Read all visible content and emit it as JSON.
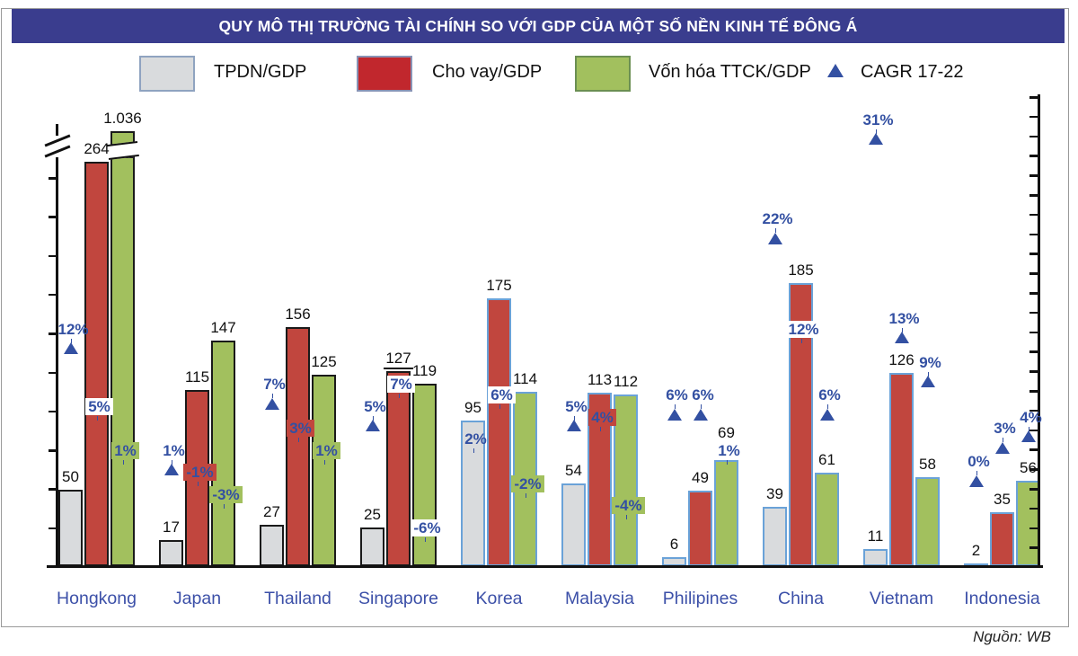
{
  "title": "QUY MÔ THỊ TRƯỜNG TÀI CHÍNH SO VỚI GDP CỦA MỘT SỐ NỀN KINH TẾ ĐÔNG Á",
  "source": "Nguồn: WB",
  "legend": [
    {
      "label": "TPDN/GDP",
      "swatch": "gray"
    },
    {
      "label": "Cho vay/GDP",
      "swatch": "red"
    },
    {
      "label": "Vốn hóa TTCK/GDP",
      "swatch": "green"
    },
    {
      "label": "CAGR 17-22",
      "swatch": "triangle"
    }
  ],
  "colors": {
    "banner_bg": "#3a3d8e",
    "bar_gray": "#d9dbdd",
    "bar_red": "#c1463e",
    "bar_green": "#a2c05e",
    "legend_red": "#c1272d",
    "border_black": "#1a1a1a",
    "border_blue": "#6aa2d8",
    "cagr_blue": "#3350a2",
    "country_blue": "#3c50a8"
  },
  "chart_data": {
    "type": "bar",
    "title": "QUY MÔ THỊ TRƯỜNG TÀI CHÍNH SO VỚI GDP CỦA MỘT SỐ NỀN KINH TẾ ĐÔNG Á",
    "series_names": [
      "TPDN/GDP",
      "Cho vay/GDP",
      "Vốn hóa TTCK/GDP",
      "CAGR 17-22"
    ],
    "categories": [
      "Hongkong",
      "Japan",
      "Thailand",
      "Singapore",
      "Korea",
      "Malaysia",
      "Philipines",
      "China",
      "Vietnam",
      "Indonesia"
    ],
    "axis_note": "left axis has a scale break above 264; Hongkong stock-cap bar (1.036) is truncated",
    "countries": [
      {
        "name": "Hongkong",
        "border": "black",
        "bars": [
          {
            "value": 50,
            "label": "50"
          },
          {
            "value": 264,
            "label": "264"
          },
          {
            "value": 1036,
            "label": "1.036",
            "axis_break": true
          }
        ],
        "cagr": [
          {
            "value": 12,
            "label": "12%",
            "bg": "none"
          },
          {
            "value": 5,
            "label": "5%",
            "bg": "white"
          },
          {
            "value": 1,
            "label": "1%",
            "bg": "green"
          }
        ]
      },
      {
        "name": "Japan",
        "border": "black",
        "bars": [
          {
            "value": 17,
            "label": "17"
          },
          {
            "value": 115,
            "label": "115"
          },
          {
            "value": 147,
            "label": "147"
          }
        ],
        "cagr": [
          {
            "value": 1,
            "label": "1%",
            "bg": "none"
          },
          {
            "value": -1,
            "label": "-1%",
            "bg": "red"
          },
          {
            "value": -3,
            "label": "-3%",
            "bg": "green"
          }
        ]
      },
      {
        "name": "Thailand",
        "border": "black",
        "bars": [
          {
            "value": 27,
            "label": "27"
          },
          {
            "value": 156,
            "label": "156"
          },
          {
            "value": 125,
            "label": "125"
          }
        ],
        "cagr": [
          {
            "value": 7,
            "label": "7%",
            "bg": "none"
          },
          {
            "value": 3,
            "label": "3%",
            "bg": "red"
          },
          {
            "value": 1,
            "label": "1%",
            "bg": "green"
          }
        ]
      },
      {
        "name": "Singapore",
        "border": "black",
        "bars": [
          {
            "value": 25,
            "label": "25"
          },
          {
            "value": 127,
            "label": "127",
            "underline": true
          },
          {
            "value": 119,
            "label": "119"
          }
        ],
        "cagr": [
          {
            "value": 5,
            "label": "5%",
            "bg": "none"
          },
          {
            "value": 7,
            "label": "7%",
            "bg": "white"
          },
          {
            "value": -6,
            "label": "-6%",
            "bg": "white"
          }
        ]
      },
      {
        "name": "Korea",
        "border": "blue",
        "bars": [
          {
            "value": 95,
            "label": "95"
          },
          {
            "value": 175,
            "label": "175"
          },
          {
            "value": 114,
            "label": "114"
          }
        ],
        "cagr": [
          {
            "value": 2,
            "label": "2%",
            "bg": "none"
          },
          {
            "value": 6,
            "label": "6%",
            "bg": "white"
          },
          {
            "value": -2,
            "label": "-2%",
            "bg": "green"
          }
        ]
      },
      {
        "name": "Malaysia",
        "border": "blue",
        "bars": [
          {
            "value": 54,
            "label": "54"
          },
          {
            "value": 113,
            "label": "113"
          },
          {
            "value": 112,
            "label": "112"
          }
        ],
        "cagr": [
          {
            "value": 5,
            "label": "5%",
            "bg": "none"
          },
          {
            "value": 4,
            "label": "4%",
            "bg": "red"
          },
          {
            "value": -4,
            "label": "-4%",
            "bg": "green"
          }
        ]
      },
      {
        "name": "Philipines",
        "border": "blue",
        "bars": [
          {
            "value": 6,
            "label": "6"
          },
          {
            "value": 49,
            "label": "49"
          },
          {
            "value": 69,
            "label": "69",
            "label_dy": -16
          }
        ],
        "cagr": [
          {
            "value": 6,
            "label": "6%",
            "bg": "none"
          },
          {
            "value": 6,
            "label": "6%",
            "bg": "none"
          },
          {
            "value": 1,
            "label": "1%",
            "bg": "none"
          }
        ]
      },
      {
        "name": "China",
        "border": "blue",
        "bars": [
          {
            "value": 39,
            "label": "39"
          },
          {
            "value": 185,
            "label": "185"
          },
          {
            "value": 61,
            "label": "61"
          }
        ],
        "cagr": [
          {
            "value": 22,
            "label": "22%",
            "bg": "none"
          },
          {
            "value": 12,
            "label": "12%",
            "bg": "white"
          },
          {
            "value": 6,
            "label": "6%",
            "bg": "none"
          }
        ]
      },
      {
        "name": "Vietnam",
        "border": "blue",
        "bars": [
          {
            "value": 11,
            "label": "11"
          },
          {
            "value": 126,
            "label": "126"
          },
          {
            "value": 58,
            "label": "58"
          }
        ],
        "cagr": [
          {
            "value": 31,
            "label": "31%",
            "bg": "none"
          },
          {
            "value": 13,
            "label": "13%",
            "bg": "none"
          },
          {
            "value": 9,
            "label": "9%",
            "bg": "none"
          }
        ]
      },
      {
        "name": "Indonesia",
        "border": "blue",
        "bars": [
          {
            "value": 2,
            "label": "2"
          },
          {
            "value": 35,
            "label": "35"
          },
          {
            "value": 56,
            "label": "56"
          }
        ],
        "cagr": [
          {
            "value": 0,
            "label": "0%",
            "bg": "none"
          },
          {
            "value": 3,
            "label": "3%",
            "bg": "none"
          },
          {
            "value": 4,
            "label": "4%",
            "bg": "none"
          }
        ]
      }
    ]
  }
}
